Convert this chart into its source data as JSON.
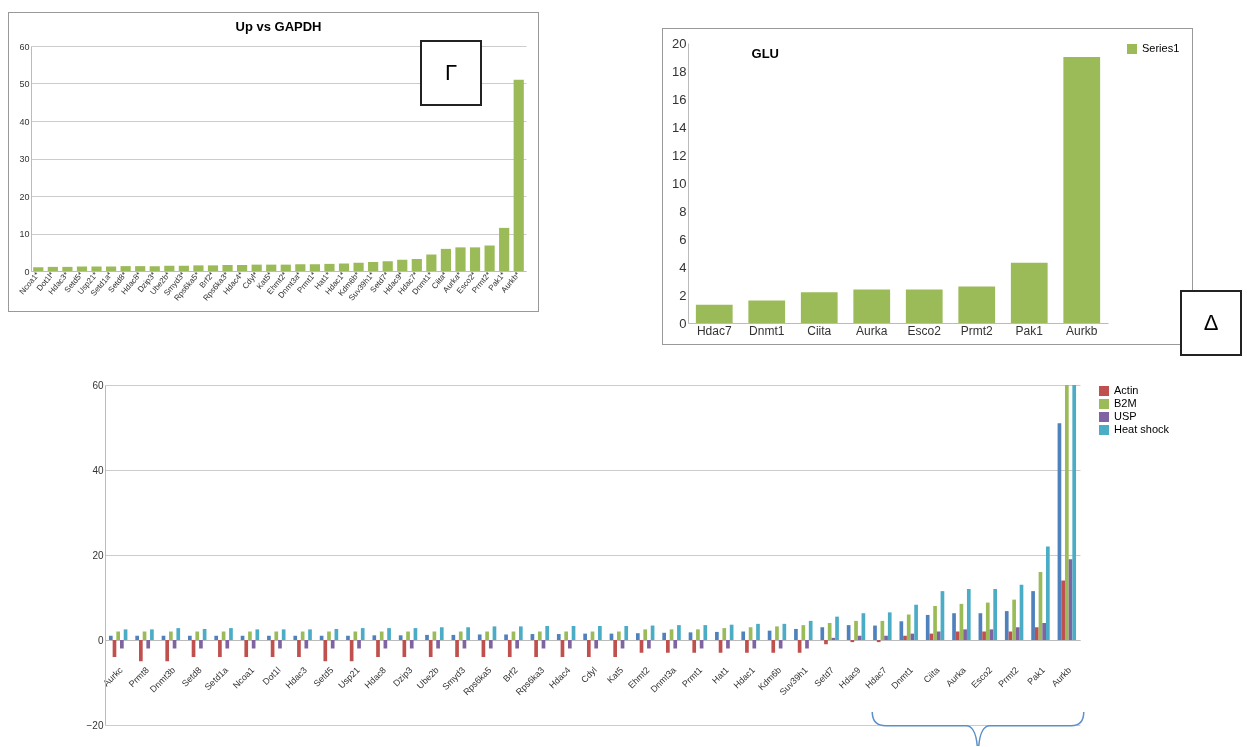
{
  "chart_data": [
    {
      "type": "bar",
      "title": "Up vs GAPDH",
      "annotations": [
        "Γ"
      ],
      "categories": [
        "Ncoa1*",
        "Dot1l*",
        "Hdac3*",
        "Setd5*",
        "Usp21*",
        "Setd1a*",
        "Setd8*",
        "Hdac8*",
        "Dzip3*",
        "Ube2b*",
        "Smyd3*",
        "Rps6ka5*",
        "Brf2*",
        "Rps6ka3*",
        "Hdac4*",
        "Cdyl*",
        "Kat5*",
        "Ehmt2*",
        "Dnmt3a*",
        "Prmt1*",
        "Hat1*",
        "Hdac1*",
        "Kdm6b*",
        "Suv39h1*",
        "Setd7*",
        "Hdac9*",
        "Hdac7*",
        "Dnmt1*",
        "Ciita*",
        "Aurka*",
        "Esco2*",
        "Prmt2*",
        "Pak1*",
        "Aurkb*"
      ],
      "values": [
        1.0,
        1.1,
        1.1,
        1.2,
        1.2,
        1.2,
        1.3,
        1.3,
        1.3,
        1.4,
        1.4,
        1.5,
        1.5,
        1.6,
        1.6,
        1.7,
        1.7,
        1.7,
        1.8,
        1.8,
        1.9,
        2.0,
        2.2,
        2.4,
        2.6,
        3.0,
        3.2,
        4.4,
        5.9,
        6.3,
        6.3,
        6.8,
        11.5,
        51
      ],
      "color": "#9bbb59",
      "ylim": [
        0,
        60
      ],
      "yticks": [
        0,
        10,
        20,
        30,
        40,
        50,
        60
      ],
      "grid": "y"
    },
    {
      "type": "bar",
      "title": "GLU",
      "annotations": [
        "Δ"
      ],
      "categories": [
        "Hdac7",
        "Dnmt1",
        "Ciita",
        "Aurka",
        "Esco2",
        "Prmt2",
        "Pak1",
        "Aurkb"
      ],
      "series": [
        {
          "name": "Series1",
          "color": "#9bbb59",
          "values": [
            1.3,
            1.6,
            2.2,
            2.4,
            2.4,
            2.6,
            4.3,
            19
          ]
        }
      ],
      "ylim": [
        0,
        20
      ],
      "yticks": [
        0,
        2,
        4,
        6,
        8,
        10,
        12,
        14,
        16,
        18,
        20
      ],
      "legend": "right"
    },
    {
      "type": "bar",
      "categories": [
        "Aurkc",
        "Prmt8",
        "Dnmt3b",
        "Setd8",
        "Setd1a",
        "Ncoa1",
        "Dot1l",
        "Hdac3",
        "Setd5",
        "Usp21",
        "Hdac8",
        "Dzip3",
        "Ube2b",
        "Smyd3",
        "Rps6ka5",
        "Brf2",
        "Rps6ka3",
        "Hdac4",
        "Cdyl",
        "Kat5",
        "Ehmt2",
        "Dnmt3a",
        "Prmt1",
        "Hat1",
        "Hdac1",
        "Kdm6b",
        "Suv39h1",
        "Setd7",
        "Hdac9",
        "Hdac7",
        "Dnmt1",
        "Ciita",
        "Aurka",
        "Esco2",
        "Prmt2",
        "Pak1",
        "Aurkb"
      ],
      "series": [
        {
          "color": "#4f81bd",
          "values": [
            1.0,
            1.0,
            1.0,
            1.0,
            1.0,
            1.0,
            1.0,
            1.0,
            1.0,
            1.0,
            1.1,
            1.1,
            1.2,
            1.2,
            1.3,
            1.3,
            1.4,
            1.4,
            1.5,
            1.5,
            1.6,
            1.7,
            1.8,
            1.9,
            2.0,
            2.2,
            2.6,
            3.0,
            3.5,
            3.4,
            4.4,
            5.9,
            6.3,
            6.3,
            6.8,
            11.5,
            51
          ]
        },
        {
          "name": "Actin",
          "color": "#c0504d",
          "values": [
            -4,
            -5,
            -5,
            -4,
            -4,
            -4,
            -4,
            -4,
            -5,
            -5,
            -4,
            -4,
            -4,
            -4,
            -4,
            -4,
            -4,
            -4,
            -4,
            -4,
            -3,
            -3,
            -3,
            -3,
            -3,
            -3,
            -3,
            -1,
            -0.5,
            -0.5,
            1,
            1.5,
            2,
            2,
            2,
            3,
            14
          ]
        },
        {
          "name": "B2M",
          "color": "#9bbb59",
          "values": [
            2,
            2,
            2,
            2,
            2,
            2,
            2,
            2,
            2,
            2,
            2,
            2,
            2,
            2,
            2,
            2,
            2,
            2,
            2,
            2,
            2.5,
            2.5,
            2.5,
            2.8,
            3,
            3.2,
            3.5,
            4,
            4.5,
            4.5,
            6,
            8,
            8.5,
            8.8,
            9.5,
            16,
            60
          ]
        },
        {
          "name": "USP",
          "color": "#8064a2",
          "values": [
            -2,
            -2,
            -2,
            -2,
            -2,
            -2,
            -2,
            -2,
            -2,
            -2,
            -2,
            -2,
            -2,
            -2,
            -2,
            -2,
            -2,
            -2,
            -2,
            -2,
            -2,
            -2,
            -2,
            -2,
            -2,
            -2,
            -2,
            0.5,
            1,
            1,
            1.5,
            2,
            2.5,
            2.5,
            3,
            4,
            19
          ]
        },
        {
          "name": "Heat shock",
          "color": "#4bacc6",
          "values": [
            2.5,
            2.5,
            2.8,
            2.6,
            2.8,
            2.5,
            2.5,
            2.5,
            2.6,
            2.8,
            2.8,
            2.8,
            3,
            3,
            3.2,
            3.2,
            3.3,
            3.3,
            3.3,
            3.3,
            3.4,
            3.5,
            3.5,
            3.6,
            3.8,
            3.8,
            4.5,
            5.5,
            6.3,
            6.5,
            8.3,
            11.5,
            12,
            12,
            13,
            22,
            60
          ]
        }
      ],
      "ylim": [
        -20,
        60
      ],
      "yticks": [
        -20,
        0,
        20,
        40,
        60
      ],
      "grid": "y",
      "legend": "right"
    }
  ]
}
